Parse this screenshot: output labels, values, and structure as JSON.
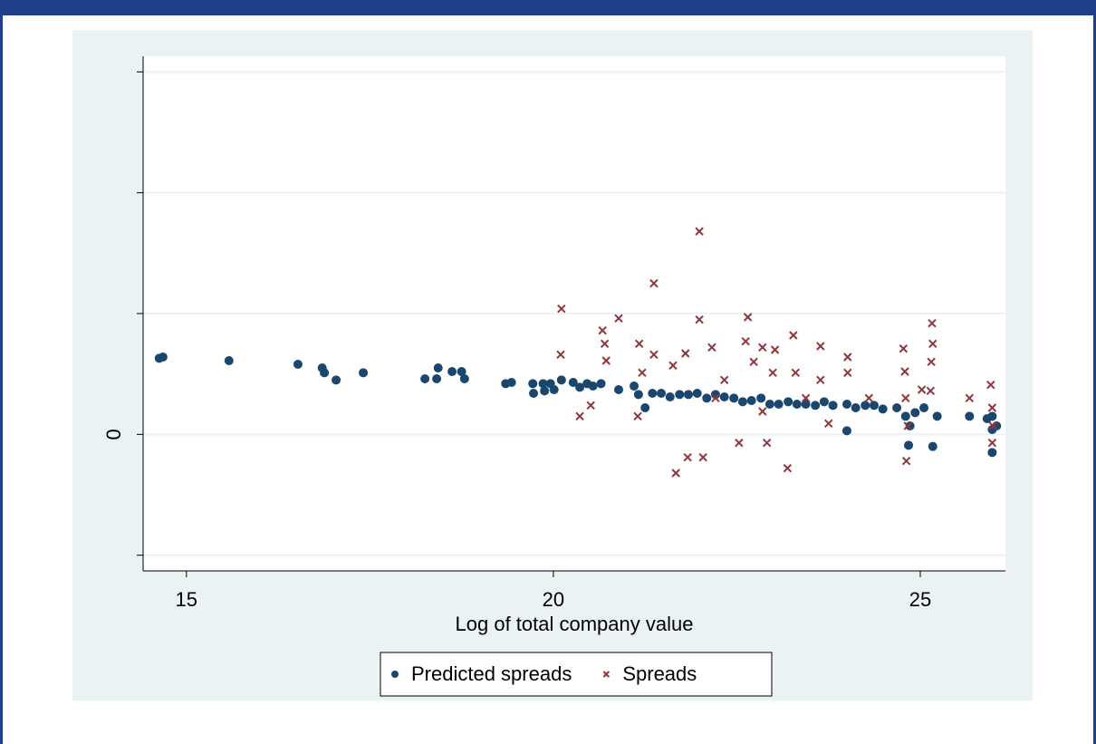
{
  "chart_data": {
    "type": "scatter",
    "x_label": "Log of total company value",
    "xlim": [
      14.41,
      26.16
    ],
    "xticks": [
      15,
      20,
      25
    ],
    "ylim": [
      -1.13,
      3.13
    ],
    "yticks": [
      0
    ],
    "ytick_marks": [
      -1,
      0,
      1,
      2,
      3
    ],
    "grid": true,
    "legend": "bottom",
    "series": [
      {
        "name": "Predicted spreads",
        "color": "#1a476f",
        "marker": "circle",
        "x": [
          14.63,
          14.68,
          15.58,
          16.52,
          16.85,
          16.88,
          17.04,
          17.41,
          18.25,
          18.41,
          18.43,
          18.62,
          18.75,
          18.79,
          19.35,
          19.43,
          19.72,
          19.73,
          19.86,
          19.88,
          19.96,
          20.01,
          20.11,
          20.27,
          20.36,
          20.46,
          20.54,
          20.65,
          20.89,
          21.1,
          21.16,
          21.25,
          21.35,
          21.47,
          21.59,
          21.72,
          21.84,
          21.96,
          22.09,
          22.21,
          22.33,
          22.46,
          22.58,
          22.7,
          22.83,
          22.95,
          23.07,
          23.2,
          23.32,
          23.44,
          23.57,
          23.69,
          23.81,
          24.0,
          24.12,
          24.25,
          24.37,
          24.49,
          24.68,
          24.8,
          24.86,
          24.93,
          25.05,
          25.17,
          25.23,
          25.67,
          25.91,
          25.98,
          25.98,
          26.04,
          25.98,
          24.84,
          24.0
        ],
        "values": [
          0.63,
          0.64,
          0.61,
          0.58,
          0.55,
          0.51,
          0.45,
          0.51,
          0.46,
          0.46,
          0.55,
          0.52,
          0.52,
          0.46,
          0.42,
          0.43,
          0.42,
          0.34,
          0.42,
          0.36,
          0.42,
          0.37,
          0.45,
          0.43,
          0.39,
          0.42,
          0.4,
          0.42,
          0.37,
          0.4,
          0.33,
          0.22,
          0.34,
          0.34,
          0.31,
          0.33,
          0.33,
          0.34,
          0.3,
          0.33,
          0.31,
          0.3,
          0.27,
          0.28,
          0.3,
          0.25,
          0.25,
          0.27,
          0.25,
          0.25,
          0.24,
          0.27,
          0.24,
          0.25,
          0.22,
          0.24,
          0.24,
          0.21,
          0.22,
          0.15,
          0.07,
          0.18,
          0.22,
          -0.1,
          0.15,
          0.15,
          0.13,
          0.04,
          -0.15,
          0.07,
          0.15,
          -0.09,
          0.03
        ]
      },
      {
        "name": "Spreads",
        "color": "#90353b",
        "marker": "x",
        "x": [
          20.11,
          20.1,
          20.67,
          20.7,
          20.72,
          20.89,
          20.36,
          20.51,
          21.17,
          21.21,
          21.15,
          21.37,
          21.37,
          21.63,
          21.67,
          21.8,
          21.83,
          21.99,
          21.99,
          22.04,
          22.16,
          22.33,
          22.53,
          22.65,
          22.62,
          22.73,
          22.85,
          22.91,
          23.02,
          22.99,
          23.19,
          23.27,
          23.3,
          23.44,
          23.64,
          23.64,
          24.01,
          24.01,
          23.75,
          24.3,
          24.77,
          24.79,
          24.8,
          24.83,
          24.81,
          25.16,
          25.17,
          25.15,
          25.14,
          25.02,
          25.67,
          25.96,
          25.98,
          25.99,
          25.98,
          22.21,
          22.85
        ],
        "values": [
          1.04,
          0.66,
          0.86,
          0.75,
          0.61,
          0.96,
          0.15,
          0.24,
          0.75,
          0.51,
          0.15,
          1.25,
          0.66,
          0.57,
          -0.32,
          0.67,
          -0.19,
          1.68,
          0.95,
          -0.19,
          0.72,
          0.45,
          -0.07,
          0.97,
          0.77,
          0.6,
          0.72,
          -0.07,
          0.7,
          0.51,
          -0.28,
          0.82,
          0.51,
          0.3,
          0.73,
          0.45,
          0.64,
          0.51,
          0.09,
          0.3,
          0.71,
          0.52,
          0.3,
          0.07,
          -0.22,
          0.92,
          0.75,
          0.6,
          0.36,
          0.37,
          0.3,
          0.41,
          0.22,
          0.07,
          -0.07,
          0.3,
          0.19
        ]
      }
    ]
  }
}
